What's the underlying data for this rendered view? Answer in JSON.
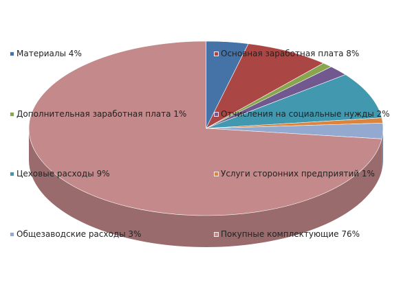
{
  "chart_data": {
    "type": "pie",
    "title": "",
    "style": "3d",
    "legend_placement": "overlay-two-columns",
    "series": [
      {
        "categories": [
          "Материалы 4%",
          "Основная заработная плата 8%",
          "Дополнительная заработная плата 1%",
          "Отчисления на социальные нужды 2%",
          "Цеховые расходы 9%",
          "Услуги сторонних предприятий 1%",
          "Общезаводские расходы 3%",
          "Покупные комплектующие 76%"
        ],
        "values": [
          4,
          8,
          1,
          2,
          9,
          1,
          3,
          76
        ],
        "colors": [
          "#4572A7",
          "#AA4643",
          "#89A54E",
          "#71588F",
          "#4198AF",
          "#DB843D",
          "#93A9CF",
          "#C4898A"
        ]
      }
    ]
  }
}
